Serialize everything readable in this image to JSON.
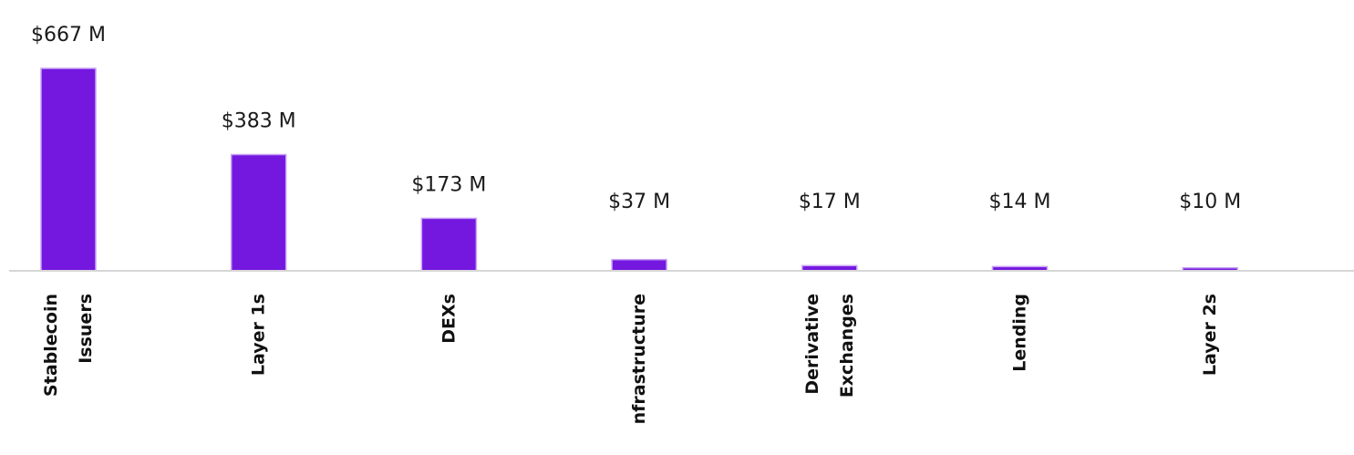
{
  "chart_data": {
    "type": "bar",
    "categories": [
      [
        "Stablecoin",
        "Issuers"
      ],
      [
        "Layer 1s"
      ],
      [
        "DEXs"
      ],
      [
        "nfrastructure"
      ],
      [
        "Derivative",
        "Exchanges"
      ],
      [
        "Lending"
      ],
      [
        "Layer 2s"
      ]
    ],
    "values": [
      667,
      383,
      173,
      37,
      17,
      14,
      10
    ],
    "value_labels": [
      "$667 M",
      "$383 M",
      "$173 M",
      "$37 M",
      "$17 M",
      "$14 M",
      "$10 M"
    ],
    "unit": "$M",
    "ylim": [
      0,
      667
    ],
    "grid": false,
    "legend": "none",
    "colors": {
      "bar": "#7418E0",
      "bar_edge": "#C9A4F4",
      "baseline": "#D6D6D6",
      "text": "#1A1A1A"
    }
  }
}
